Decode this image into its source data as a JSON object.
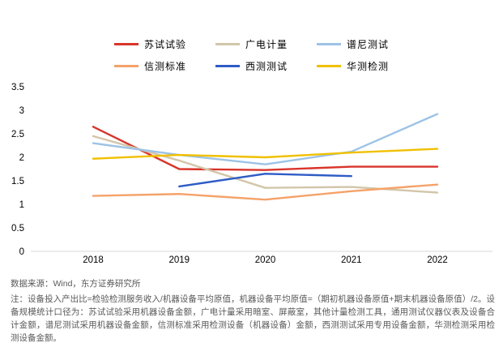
{
  "chart_data": {
    "type": "line",
    "x": [
      2018,
      2019,
      2020,
      2021,
      2022
    ],
    "series": [
      {
        "name": "苏试试验",
        "color": "#d9342a",
        "values": [
          2.65,
          1.75,
          1.73,
          1.8,
          1.8
        ]
      },
      {
        "name": "广电计量",
        "color": "#d2c6aa",
        "values": [
          2.45,
          1.93,
          1.35,
          1.37,
          1.25
        ]
      },
      {
        "name": "谱尼测试",
        "color": "#9dc3e6",
        "values": [
          2.3,
          2.05,
          1.85,
          2.12,
          2.92
        ]
      },
      {
        "name": "信测标准",
        "color": "#f5a269",
        "values": [
          1.18,
          1.22,
          1.1,
          1.28,
          1.42
        ]
      },
      {
        "name": "西测测试",
        "color": "#2e5cc5",
        "values": [
          null,
          1.38,
          1.65,
          1.6,
          null
        ]
      },
      {
        "name": "华测检测",
        "color": "#f0c000",
        "values": [
          1.97,
          2.05,
          2.0,
          2.1,
          2.18
        ]
      }
    ],
    "title": "",
    "xlabel": "",
    "ylabel": "",
    "ylim": [
      0,
      3.5
    ],
    "yticks": [
      0,
      0.5,
      1,
      1.5,
      2,
      2.5,
      3,
      3.5
    ],
    "grid": false,
    "legend_position": "top"
  },
  "footer": {
    "source": "数据来源：Wind，东方证券研究所",
    "note": "注：设备投入产出比=检验检测服务收入/机器设备平均原值，机器设备平均原值=（期初机器设备原值+期末机器设备原值）/2。设备规模统计口径为：苏试试验采用机器设备金额，广电计量采用暗室、屏蔽室，其他计量检测工具，通用测试仪器仪表及设备合计金额，谱尼测试采用机器设备金额，信测标准采用检测设备（机器设备）金额，西测测试采用专用设备金额，华测检测采用检测设备金额。"
  }
}
